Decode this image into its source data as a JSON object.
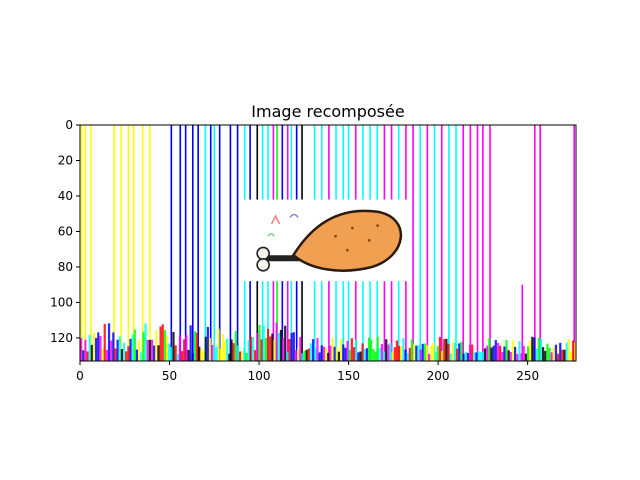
{
  "chart_data": {
    "type": "image",
    "title": "Image recomposée",
    "xlabel": "",
    "ylabel": "",
    "xlim": [
      0,
      277
    ],
    "ylim": [
      133,
      0
    ],
    "x_ticks": [
      0,
      50,
      100,
      150,
      200,
      250
    ],
    "y_ticks": [
      0,
      20,
      40,
      60,
      80,
      100,
      120
    ],
    "grid": false,
    "legend": "none",
    "inset_image": {
      "description_icon": "chicken-drumstick-icon",
      "x_range": [
        91,
        185
      ],
      "y_range": [
        42,
        88
      ]
    },
    "stripe_colors": {
      "yellow": "#ffff00",
      "blue": "#0000ff",
      "cyan": "#00ffff",
      "magenta": "#ff00ff",
      "green": "#00ff00",
      "black": "#000000",
      "red": "#ff0000"
    },
    "stripes": [
      {
        "x": 1,
        "top": 0,
        "color": "yellow"
      },
      {
        "x": 3,
        "top": 0,
        "color": "yellow"
      },
      {
        "x": 6,
        "top": 0,
        "color": "yellow"
      },
      {
        "x": 19,
        "top": 0,
        "color": "yellow"
      },
      {
        "x": 23,
        "top": 0,
        "color": "yellow"
      },
      {
        "x": 27,
        "top": 0,
        "color": "yellow"
      },
      {
        "x": 30,
        "top": 0,
        "color": "yellow"
      },
      {
        "x": 35,
        "top": 0,
        "color": "yellow"
      },
      {
        "x": 39,
        "top": 0,
        "color": "yellow"
      },
      {
        "x": 51,
        "top": 0,
        "color": "blue"
      },
      {
        "x": 56,
        "top": 0,
        "color": "blue"
      },
      {
        "x": 59,
        "top": 0,
        "color": "blue"
      },
      {
        "x": 63,
        "top": 0,
        "color": "blue"
      },
      {
        "x": 66,
        "top": 0,
        "color": "blue"
      },
      {
        "x": 70,
        "top": 0,
        "color": "cyan"
      },
      {
        "x": 73,
        "top": 0,
        "color": "blue"
      },
      {
        "x": 75,
        "top": 0,
        "color": "cyan"
      },
      {
        "x": 78,
        "top": 0,
        "color": "blue"
      },
      {
        "x": 84,
        "top": 0,
        "color": "blue"
      },
      {
        "x": 88,
        "top": 0,
        "color": "blue"
      },
      {
        "x": 92,
        "top": 0,
        "color": "cyan"
      },
      {
        "x": 95,
        "top": 0,
        "color": "blue"
      },
      {
        "x": 99,
        "top": 0,
        "color": "black"
      },
      {
        "x": 102,
        "top": 0,
        "color": "cyan"
      },
      {
        "x": 105,
        "top": 0,
        "color": "cyan"
      },
      {
        "x": 108,
        "top": 0,
        "color": "magenta"
      },
      {
        "x": 110,
        "top": 0,
        "color": "green"
      },
      {
        "x": 113,
        "top": 0,
        "color": "blue"
      },
      {
        "x": 116,
        "top": 0,
        "color": "magenta"
      },
      {
        "x": 118,
        "top": 0,
        "color": "cyan"
      },
      {
        "x": 121,
        "top": 0,
        "color": "blue"
      },
      {
        "x": 124,
        "top": 0,
        "color": "black"
      },
      {
        "x": 131,
        "top": 0,
        "color": "cyan"
      },
      {
        "x": 135,
        "top": 0,
        "color": "cyan"
      },
      {
        "x": 139,
        "top": 0,
        "color": "magenta"
      },
      {
        "x": 143,
        "top": 0,
        "color": "cyan"
      },
      {
        "x": 147,
        "top": 0,
        "color": "cyan"
      },
      {
        "x": 150,
        "top": 0,
        "color": "cyan"
      },
      {
        "x": 154,
        "top": 0,
        "color": "magenta"
      },
      {
        "x": 158,
        "top": 0,
        "color": "cyan"
      },
      {
        "x": 162,
        "top": 0,
        "color": "cyan"
      },
      {
        "x": 166,
        "top": 0,
        "color": "cyan"
      },
      {
        "x": 170,
        "top": 0,
        "color": "magenta"
      },
      {
        "x": 174,
        "top": 0,
        "color": "magenta"
      },
      {
        "x": 178,
        "top": 0,
        "color": "cyan"
      },
      {
        "x": 182,
        "top": 0,
        "color": "magenta"
      },
      {
        "x": 186,
        "top": 0,
        "color": "magenta"
      },
      {
        "x": 190,
        "top": 0,
        "color": "cyan"
      },
      {
        "x": 194,
        "top": 0,
        "color": "magenta"
      },
      {
        "x": 198,
        "top": 0,
        "color": "cyan"
      },
      {
        "x": 202,
        "top": 0,
        "color": "magenta"
      },
      {
        "x": 206,
        "top": 0,
        "color": "cyan"
      },
      {
        "x": 210,
        "top": 0,
        "color": "cyan"
      },
      {
        "x": 214,
        "top": 0,
        "color": "magenta"
      },
      {
        "x": 218,
        "top": 0,
        "color": "magenta"
      },
      {
        "x": 222,
        "top": 0,
        "color": "magenta"
      },
      {
        "x": 225,
        "top": 0,
        "color": "magenta"
      },
      {
        "x": 229,
        "top": 0,
        "color": "magenta"
      },
      {
        "x": 247,
        "top": 90,
        "color": "magenta"
      },
      {
        "x": 254,
        "top": 0,
        "color": "magenta"
      },
      {
        "x": 257,
        "top": 0,
        "color": "magenta"
      },
      {
        "x": 276,
        "top": 0,
        "color": "magenta"
      }
    ]
  }
}
